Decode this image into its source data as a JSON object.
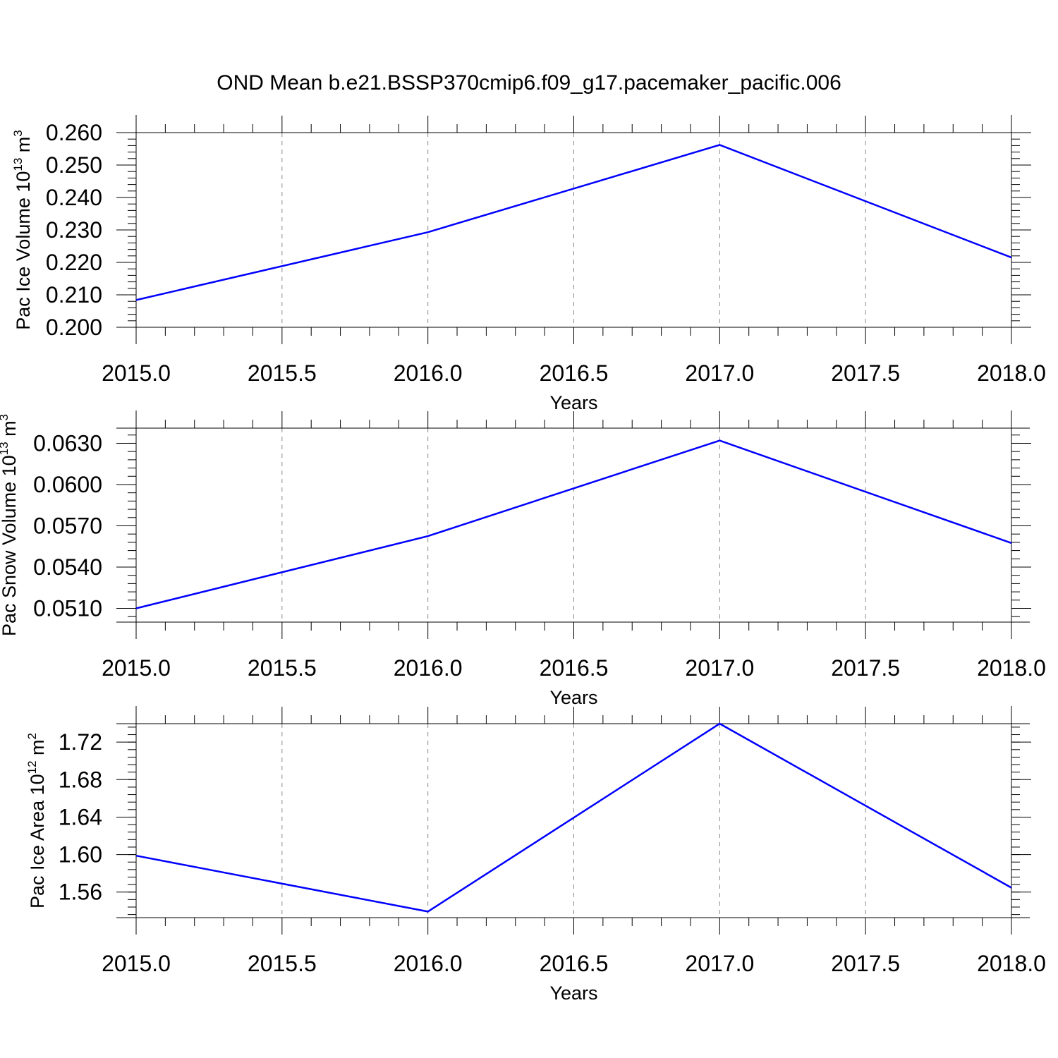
{
  "title": "OND Mean b.e21.BSSP370cmip6.f09_g17.pacemaker_pacific.006",
  "chart_data": [
    {
      "type": "line",
      "ylabel": "Pac Ice Volume 10",
      "ylabel_sup": "13",
      "ylabel_unit": " m",
      "ylabel_unit_sup": "3",
      "xlabel": "Years",
      "x": [
        2015,
        2016,
        2017,
        2018
      ],
      "values": [
        0.2084,
        0.2293,
        0.2562,
        0.2215
      ],
      "xlim": [
        2015,
        2018
      ],
      "ylim": [
        0.2,
        0.26
      ],
      "xticks": [
        2015.0,
        2015.5,
        2016.0,
        2016.5,
        2017.0,
        2017.5,
        2018.0
      ],
      "xtick_labels": [
        "2015.0",
        "2015.5",
        "2016.0",
        "2016.5",
        "2017.0",
        "2017.5",
        "2018.0"
      ],
      "yticks": [
        0.2,
        0.21,
        0.22,
        0.23,
        0.24,
        0.25,
        0.26
      ],
      "ytick_labels": [
        "0.200",
        "0.210",
        "0.220",
        "0.230",
        "0.240",
        "0.250",
        "0.260"
      ],
      "ytick_minor_step": 0.002,
      "color": "#0000ff",
      "grid": "vertical dashed at x ticks"
    },
    {
      "type": "line",
      "ylabel": "Pac Snow Volume 10",
      "ylabel_sup": "13",
      "ylabel_unit": " m",
      "ylabel_unit_sup": "3",
      "xlabel": "Years",
      "x": [
        2015,
        2016,
        2017,
        2018
      ],
      "values": [
        0.051,
        0.05625,
        0.0632,
        0.05575
      ],
      "xlim": [
        2015,
        2018
      ],
      "ylim": [
        0.05,
        0.0641
      ],
      "xticks": [
        2015.0,
        2015.5,
        2016.0,
        2016.5,
        2017.0,
        2017.5,
        2018.0
      ],
      "xtick_labels": [
        "2015.0",
        "2015.5",
        "2016.0",
        "2016.5",
        "2017.0",
        "2017.5",
        "2018.0"
      ],
      "yticks": [
        0.051,
        0.054,
        0.057,
        0.06,
        0.063
      ],
      "ytick_labels": [
        "0.0510",
        "0.0540",
        "0.0570",
        "0.0600",
        "0.0630"
      ],
      "ytick_minor_step": 0.0006,
      "color": "#0000ff",
      "grid": "vertical dashed at x ticks"
    },
    {
      "type": "line",
      "ylabel": "Pac Ice Area 10",
      "ylabel_sup": "12",
      "ylabel_unit": " m",
      "ylabel_unit_sup": "2",
      "xlabel": "Years",
      "x": [
        2015,
        2016,
        2017,
        2018
      ],
      "values": [
        1.5988,
        1.5392,
        1.7397,
        1.5646
      ],
      "xlim": [
        2015,
        2018
      ],
      "ylim": [
        1.5327,
        1.7397
      ],
      "xticks": [
        2015.0,
        2015.5,
        2016.0,
        2016.5,
        2017.0,
        2017.5,
        2018.0
      ],
      "xtick_labels": [
        "2015.0",
        "2015.5",
        "2016.0",
        "2016.5",
        "2017.0",
        "2017.5",
        "2018.0"
      ],
      "yticks": [
        1.56,
        1.6,
        1.64,
        1.68,
        1.72
      ],
      "ytick_labels": [
        "1.56",
        "1.60",
        "1.64",
        "1.68",
        "1.72"
      ],
      "ytick_minor_step": 0.008,
      "color": "#0000ff",
      "grid": "vertical dashed at x ticks"
    }
  ]
}
